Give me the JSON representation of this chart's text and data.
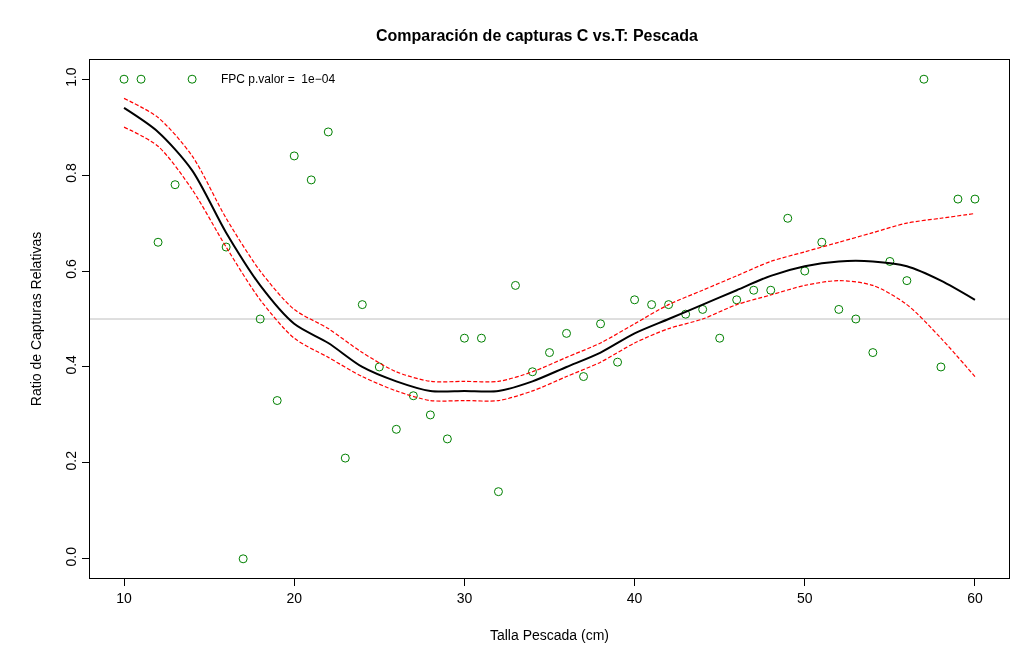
{
  "chart_data": {
    "type": "scatter",
    "title": "Comparación de capturas C vs.T: Pescada",
    "xlabel": "Talla Pescada (cm)",
    "ylabel": "Ratio de Capturas Relativas",
    "xlim": [
      8,
      62
    ],
    "xticks": [
      10,
      20,
      30,
      40,
      50,
      60
    ],
    "ylim": [
      -0.04,
      1.04
    ],
    "yticks": [
      {
        "value": 0,
        "label": "0.0"
      },
      0.2,
      0.4,
      0.6,
      0.8,
      {
        "value": 1,
        "label": "1.0"
      }
    ],
    "marker": "circle",
    "annotations": [
      "FPC p.valor =  1e−04"
    ],
    "ref_lines": [
      {
        "axis": "y",
        "value": 0.5,
        "color": "#bebebe"
      }
    ],
    "series": [
      {
        "color": "#008000",
        "x": [
          10,
          11,
          12,
          13,
          14,
          16,
          17,
          18,
          19,
          20,
          21,
          22,
          23,
          24,
          25,
          26,
          27,
          28,
          29,
          30,
          31,
          32,
          33,
          34,
          35,
          36,
          37,
          38,
          39,
          40,
          41,
          42,
          43,
          44,
          45,
          46,
          47,
          48,
          49,
          50,
          51,
          52,
          53,
          54,
          55,
          56,
          57,
          58,
          59,
          60
        ],
        "values": [
          1.0,
          1.0,
          0.66,
          0.78,
          1.0,
          0.65,
          0.0,
          0.5,
          0.33,
          0.84,
          0.79,
          0.89,
          0.21,
          0.53,
          0.4,
          0.27,
          0.34,
          0.3,
          0.25,
          0.46,
          0.46,
          0.14,
          0.57,
          0.39,
          0.43,
          0.47,
          0.38,
          0.49,
          0.41,
          0.54,
          0.53,
          0.53,
          0.51,
          0.52,
          0.46,
          0.54,
          0.56,
          0.56,
          0.71,
          0.6,
          0.66,
          0.52,
          0.5,
          0.43,
          0.62,
          0.58,
          1.0,
          0.4,
          0.75,
          0.75
        ]
      },
      {
        "type": "line",
        "marker": "none",
        "color": "#000000",
        "line_style": "solid",
        "x": [
          10,
          12,
          14,
          16,
          18,
          20,
          22,
          24,
          26,
          28,
          30,
          32,
          34,
          36,
          38,
          40,
          42,
          44,
          46,
          48,
          50,
          52,
          54,
          56,
          58,
          60
        ],
        "values": [
          0.94,
          0.89,
          0.81,
          0.68,
          0.57,
          0.49,
          0.45,
          0.4,
          0.37,
          0.35,
          0.35,
          0.35,
          0.37,
          0.4,
          0.43,
          0.47,
          0.5,
          0.53,
          0.56,
          0.59,
          0.61,
          0.62,
          0.62,
          0.61,
          0.58,
          0.54
        ]
      },
      {
        "type": "line",
        "marker": "none",
        "color": "#ff0000",
        "line_style": "dashed",
        "x": [
          10,
          12,
          14,
          16,
          18,
          20,
          22,
          24,
          26,
          28,
          30,
          32,
          34,
          36,
          38,
          40,
          42,
          44,
          46,
          48,
          50,
          52,
          54,
          56,
          58,
          60
        ],
        "values": [
          0.9,
          0.86,
          0.77,
          0.65,
          0.54,
          0.46,
          0.42,
          0.38,
          0.35,
          0.33,
          0.33,
          0.33,
          0.35,
          0.38,
          0.41,
          0.45,
          0.48,
          0.5,
          0.53,
          0.55,
          0.57,
          0.58,
          0.57,
          0.53,
          0.46,
          0.38
        ]
      },
      {
        "type": "line",
        "marker": "none",
        "color": "#ff0000",
        "line_style": "dashed",
        "x": [
          10,
          12,
          14,
          16,
          18,
          20,
          22,
          24,
          26,
          28,
          30,
          32,
          34,
          36,
          38,
          40,
          42,
          44,
          46,
          48,
          50,
          52,
          54,
          56,
          58,
          60
        ],
        "values": [
          0.96,
          0.92,
          0.84,
          0.71,
          0.6,
          0.52,
          0.48,
          0.43,
          0.39,
          0.37,
          0.37,
          0.37,
          0.39,
          0.42,
          0.45,
          0.49,
          0.53,
          0.56,
          0.59,
          0.62,
          0.64,
          0.66,
          0.68,
          0.7,
          0.71,
          0.72
        ]
      }
    ]
  }
}
